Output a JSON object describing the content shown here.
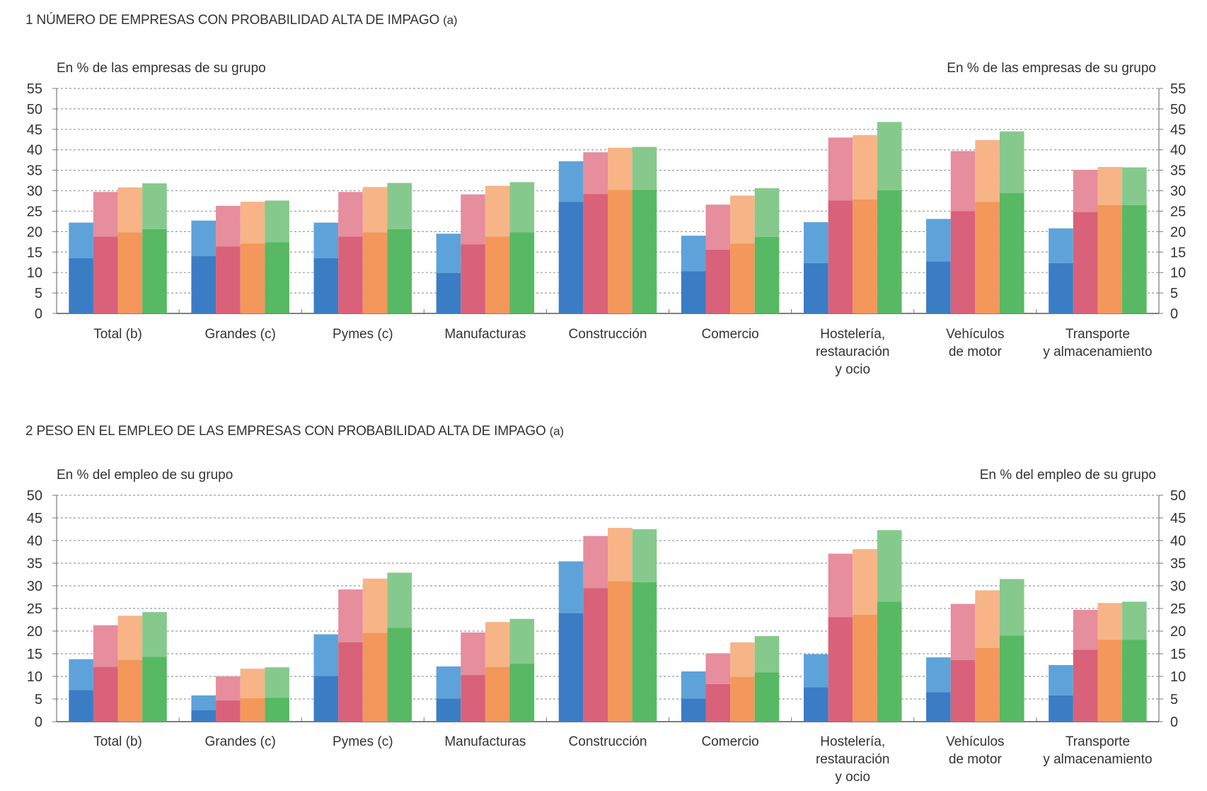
{
  "colors": {
    "series_dark": [
      "#3a7dc4",
      "#d9617a",
      "#f3975a",
      "#57b963"
    ],
    "series_light": [
      "#5da3da",
      "#e68d9e",
      "#f7b486",
      "#86c98c"
    ]
  },
  "chart_data": [
    {
      "type": "bar",
      "stacked_overlay": true,
      "title": "1  NÚMERO DE EMPRESAS CON PROBABILIDAD ALTA DE IMPAGO",
      "title_note": "(a)",
      "ylabel_left": "En % de las empresas de su grupo",
      "ylabel_right": "En % de las empresas de su grupo",
      "ylim": [
        0,
        55
      ],
      "yticks": [
        0,
        5,
        10,
        15,
        20,
        25,
        30,
        35,
        40,
        45,
        50,
        55
      ],
      "grid": true,
      "categories": [
        "Total (b)",
        "Grandes (c)",
        "Pymes (c)",
        "Manufacturas",
        "Construcción",
        "Comercio",
        "Hostelería,\nrestauración\ny ocio",
        "Vehículos\nde motor",
        "Transporte\ny almacenamiento"
      ],
      "series": [
        {
          "lower": [
            13.5,
            14.0,
            13.5,
            9.9,
            27.3,
            10.3,
            12.3,
            12.7,
            12.3
          ],
          "total": [
            22.2,
            22.7,
            22.2,
            19.5,
            37.2,
            19.0,
            22.3,
            23.1,
            20.8
          ]
        },
        {
          "lower": [
            18.8,
            16.4,
            18.8,
            16.9,
            29.2,
            15.6,
            27.6,
            25.0,
            24.8
          ],
          "total": [
            29.7,
            26.3,
            29.7,
            29.1,
            39.4,
            26.6,
            43.0,
            39.7,
            35.1
          ]
        },
        {
          "lower": [
            19.8,
            17.1,
            19.8,
            18.8,
            30.2,
            17.1,
            27.9,
            27.3,
            26.5
          ],
          "total": [
            30.8,
            27.3,
            30.9,
            31.2,
            40.5,
            28.8,
            43.6,
            42.4,
            35.8
          ]
        },
        {
          "lower": [
            20.6,
            17.4,
            20.6,
            19.8,
            30.2,
            18.7,
            30.1,
            29.4,
            26.5
          ],
          "total": [
            31.8,
            27.6,
            31.9,
            32.1,
            40.7,
            30.6,
            46.8,
            44.5,
            35.7
          ]
        }
      ]
    },
    {
      "type": "bar",
      "stacked_overlay": true,
      "title": "2  PESO EN EL EMPLEO DE LAS EMPRESAS CON PROBABILIDAD ALTA DE IMPAGO",
      "title_note": "(a)",
      "ylabel_left": "En % del empleo de su grupo",
      "ylabel_right": "En % del empleo de su grupo",
      "ylim": [
        0,
        50
      ],
      "yticks": [
        0,
        5,
        10,
        15,
        20,
        25,
        30,
        35,
        40,
        45,
        50
      ],
      "grid": true,
      "categories": [
        "Total (b)",
        "Grandes (c)",
        "Pymes (c)",
        "Manufacturas",
        "Construcción",
        "Comercio",
        "Hostelería,\nrestauración\ny ocio",
        "Vehículos\nde motor",
        "Transporte\ny almacenamiento"
      ],
      "series": [
        {
          "lower": [
            7.0,
            2.5,
            10.1,
            5.1,
            24.0,
            5.1,
            7.6,
            6.5,
            5.8
          ],
          "total": [
            13.8,
            5.8,
            19.3,
            12.2,
            35.4,
            11.1,
            14.9,
            14.2,
            12.5
          ]
        },
        {
          "lower": [
            12.1,
            4.7,
            17.5,
            10.3,
            29.5,
            8.3,
            23.1,
            13.6,
            15.9
          ],
          "total": [
            21.3,
            10.0,
            29.2,
            19.7,
            41.0,
            15.1,
            37.1,
            26.0,
            24.7
          ]
        },
        {
          "lower": [
            13.6,
            5.2,
            19.6,
            12.1,
            31.0,
            9.9,
            23.6,
            16.3,
            18.1
          ],
          "total": [
            23.4,
            11.7,
            31.6,
            22.0,
            42.8,
            17.5,
            38.1,
            29.0,
            26.2
          ]
        },
        {
          "lower": [
            14.3,
            5.3,
            20.7,
            12.8,
            30.8,
            10.9,
            26.5,
            19.0,
            18.1
          ],
          "total": [
            24.2,
            12.0,
            32.9,
            22.7,
            42.5,
            18.9,
            42.3,
            31.5,
            26.5
          ]
        }
      ]
    }
  ]
}
